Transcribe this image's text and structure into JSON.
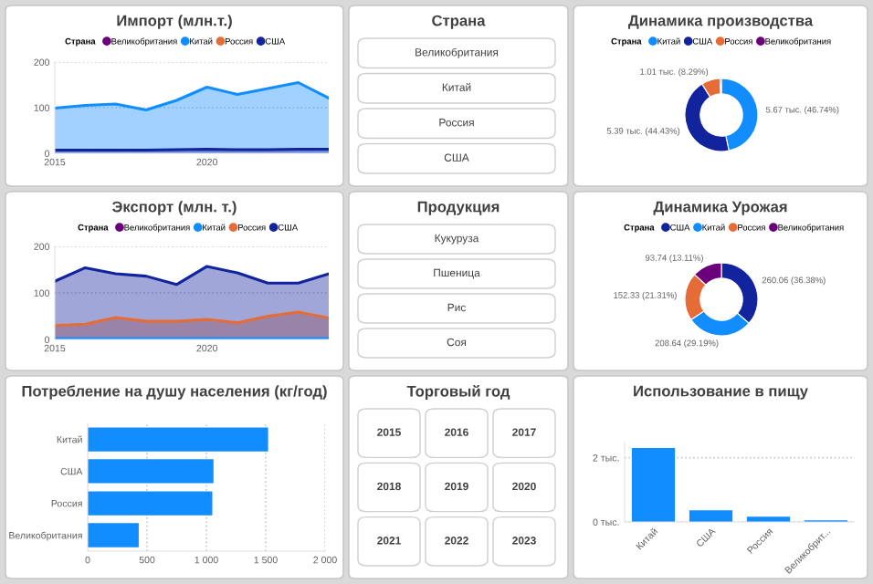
{
  "chart_data": [
    {
      "type": "area",
      "title": "Импорт (млн.т.)",
      "legend_title": "Страна",
      "legend": "top",
      "grid": "y",
      "marker": "none",
      "x": [
        2015,
        2016,
        2017,
        2018,
        2019,
        2020,
        2021,
        2022,
        2023,
        2024
      ],
      "xlim": [
        2015,
        2024
      ],
      "xticks": [
        2015,
        2020
      ],
      "ylim": [
        0,
        200
      ],
      "yticks": [
        0,
        100,
        200
      ],
      "series": [
        {
          "name": "Великобритания",
          "color": "#6b007b",
          "values": [
            null,
            null,
            null,
            null,
            null,
            null,
            null,
            null,
            null,
            null
          ]
        },
        {
          "name": "Китай",
          "color": "#118dff",
          "values": [
            99,
            105,
            108,
            95,
            116,
            145,
            129,
            142,
            155,
            121
          ]
        },
        {
          "name": "Россия",
          "color": "#e66c37",
          "values": [
            null,
            null,
            null,
            null,
            null,
            null,
            null,
            null,
            null,
            null
          ]
        },
        {
          "name": "США",
          "color": "#12239e",
          "values": [
            7,
            7,
            7,
            7,
            8,
            9,
            8,
            8,
            9,
            9
          ]
        }
      ]
    },
    {
      "type": "other",
      "title": "Страна",
      "annotations": [
        "Великобритания",
        "Китай",
        "Россия",
        "США"
      ]
    },
    {
      "type": "donut",
      "title": "Динамика производства",
      "legend_title": "Страна",
      "legend": "top",
      "categories": [
        "Китай",
        "США",
        "Россия",
        "Великобритания"
      ],
      "values": [
        5.67,
        5.39,
        1.01,
        0.07
      ],
      "colors": [
        "#118dff",
        "#12239e",
        "#e66c37",
        "#6b007b"
      ],
      "value_labels": [
        "5.67 тыс. (46.74%)",
        "5.39 тыс. (44.43%)",
        "1.01 тыс. (8.29%)",
        null
      ]
    },
    {
      "type": "area",
      "title": "Экспорт (млн. т.)",
      "legend_title": "Страна",
      "legend": "top",
      "grid": "y",
      "marker": "none",
      "x": [
        2015,
        2016,
        2017,
        2018,
        2019,
        2020,
        2021,
        2022,
        2023,
        2024
      ],
      "xlim": [
        2015,
        2024
      ],
      "xticks": [
        2015,
        2020
      ],
      "ylim": [
        0,
        200
      ],
      "yticks": [
        0,
        100,
        200
      ],
      "series": [
        {
          "name": "Великобритания",
          "color": "#6b007b",
          "values": [
            null,
            null,
            null,
            null,
            null,
            null,
            null,
            null,
            null,
            null
          ]
        },
        {
          "name": "Китай",
          "color": "#118dff",
          "values": [
            2,
            2,
            2,
            2,
            2,
            2,
            2,
            2,
            2,
            2
          ]
        },
        {
          "name": "Россия",
          "color": "#e66c37",
          "values": [
            30,
            33,
            47,
            39,
            39,
            43,
            36,
            50,
            59,
            46
          ]
        },
        {
          "name": "США",
          "color": "#12239e",
          "values": [
            125,
            154,
            141,
            136,
            118,
            157,
            143,
            121,
            121,
            141
          ]
        }
      ]
    },
    {
      "type": "other",
      "title": "Продукция",
      "annotations": [
        "Кукуруза",
        "Пшеница",
        "Рис",
        "Соя"
      ]
    },
    {
      "type": "donut",
      "title": "Динамика Урожая",
      "legend_title": "Страна",
      "legend": "top",
      "categories": [
        "США",
        "Китай",
        "Россия",
        "Великобритания"
      ],
      "values": [
        260.06,
        208.64,
        152.33,
        93.74
      ],
      "colors": [
        "#12239e",
        "#118dff",
        "#e66c37",
        "#6b007b"
      ],
      "value_labels": [
        "260.06 (36.38%)",
        "208.64 (29.19%)",
        "152.33 (21.31%)",
        "93.74 (13.11%)"
      ]
    },
    {
      "type": "bar",
      "orientation": "horizontal",
      "title": "Потребление на душу населения (кг/год)",
      "grid": "x",
      "categories": [
        "Китай",
        "США",
        "Россия",
        "Великобритания"
      ],
      "values": [
        1520,
        1060,
        1050,
        430
      ],
      "color": "#118dff",
      "xlim": [
        0,
        2000
      ],
      "xticks": [
        0,
        500,
        {
          "value": 1000,
          "label": "1 000"
        },
        {
          "value": 1500,
          "label": "1 500"
        },
        {
          "value": 2000,
          "label": "2 000"
        }
      ]
    },
    {
      "type": "other",
      "title": "Торговый год",
      "annotations": [
        "2015",
        "2016",
        "2017",
        "2018",
        "2019",
        "2020",
        "2021",
        "2022",
        "2023"
      ]
    },
    {
      "type": "bar",
      "title": "Использование в пищу",
      "grid": "y",
      "categories": [
        "Китай",
        "США",
        "Россия",
        "Великобрит..."
      ],
      "values": [
        2.3,
        0.36,
        0.16,
        0.05
      ],
      "color": "#118dff",
      "ylim": [
        0,
        2.5
      ],
      "yticks": [
        {
          "value": 0,
          "label": "0 тыс."
        },
        {
          "value": 2,
          "label": "2 тыс."
        }
      ]
    }
  ]
}
